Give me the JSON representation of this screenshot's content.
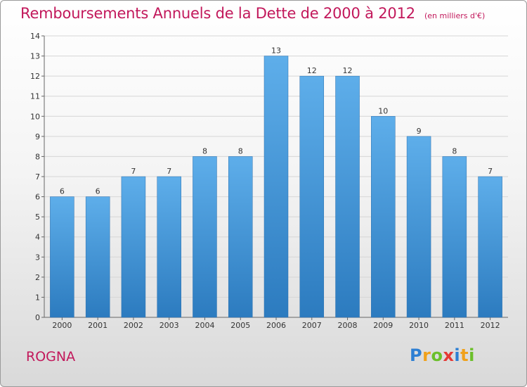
{
  "chart_data": {
    "type": "bar",
    "title": "Remboursements Annuels de la Dette de 2000 à 2012",
    "subtitle": "(en milliers d'€)",
    "categories": [
      "2000",
      "2001",
      "2002",
      "2003",
      "2004",
      "2005",
      "2006",
      "2007",
      "2008",
      "2009",
      "2010",
      "2011",
      "2012"
    ],
    "values": [
      6,
      6,
      7,
      7,
      8,
      8,
      13,
      12,
      12,
      10,
      9,
      8,
      7
    ],
    "ylim": [
      0,
      14
    ],
    "yticks": [
      "0",
      "1",
      "2",
      "3",
      "4",
      "5",
      "6",
      "7",
      "8",
      "9",
      "10",
      "11",
      "12",
      "13",
      "14"
    ],
    "grid": true,
    "bar_color": "#5aa9e6",
    "bar_color_bottom": "#2f7fc2"
  },
  "commune": "ROGNA",
  "logo": {
    "letters": [
      "P",
      "r",
      "o",
      "x",
      "i",
      "t",
      "i"
    ]
  }
}
